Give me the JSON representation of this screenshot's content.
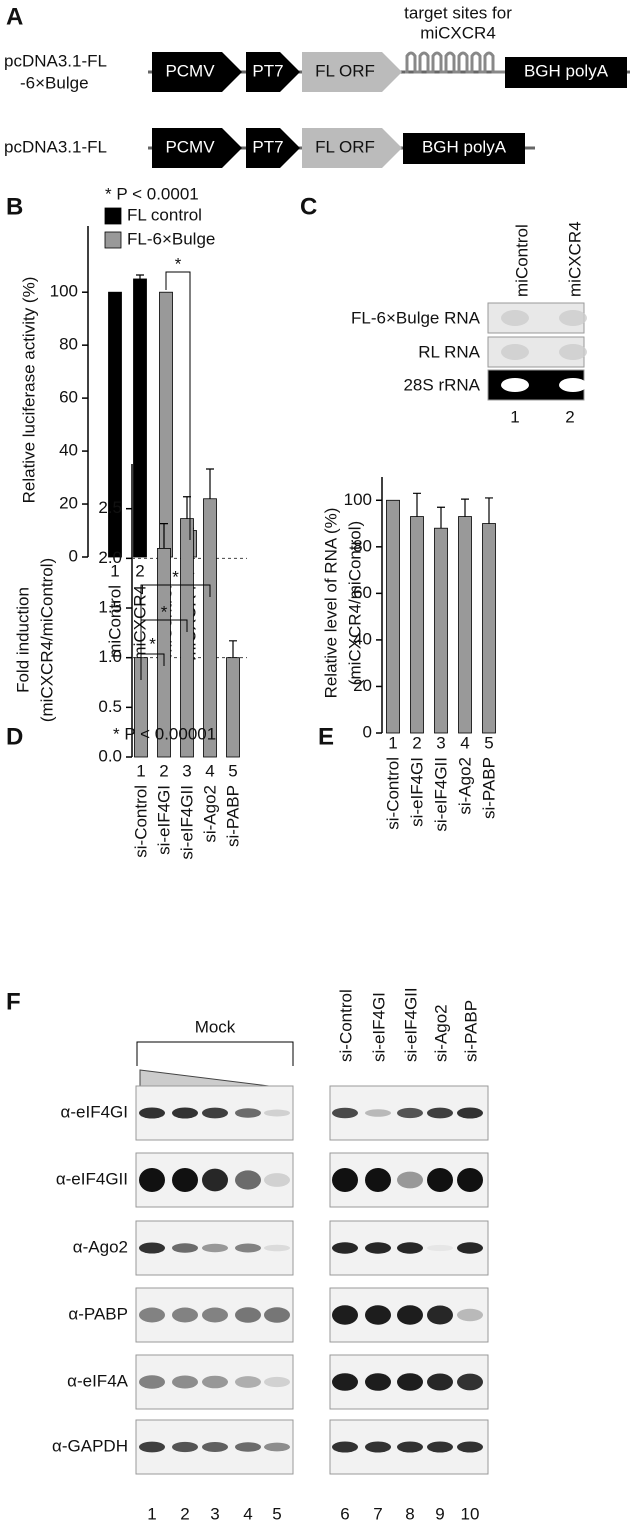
{
  "panel_labels": [
    "A",
    "B",
    "C",
    "D",
    "E",
    "F"
  ],
  "constructs": [
    {
      "name_lines": [
        "pcDNA3.1-FL",
        "-6×Bulge"
      ],
      "elements": [
        "PCMV",
        "PT7",
        "FL ORF",
        "BGH polyA"
      ],
      "target_label": [
        "target sites for",
        "miCXCR4"
      ]
    },
    {
      "name_lines": [
        "pcDNA3.1-FL"
      ],
      "elements": [
        "PCMV",
        "PT7",
        "FL ORF",
        "BGH polyA"
      ]
    }
  ],
  "northern": {
    "lanes": [
      "miControl",
      "miCXCR4"
    ],
    "rows": [
      "FL-6×Bulge RNA",
      "RL RNA",
      "28S rRNA"
    ],
    "lane_numbers": [
      "1",
      "2"
    ]
  },
  "western": {
    "group_label": "Mock",
    "lanes": [
      "si-Control",
      "si-eIF4GI",
      "si-eIF4GII",
      "si-Ago2",
      "si-PABP"
    ],
    "rows": [
      "α-eIF4GI",
      "α-eIF4GII",
      "α-Ago2",
      "α-PABP",
      "α-eIF4A",
      "α-GAPDH"
    ],
    "lane_numbers": [
      "1",
      "2",
      "3",
      "4",
      "5",
      "6",
      "7",
      "8",
      "9",
      "10"
    ]
  },
  "chart_data": [
    {
      "type": "bar",
      "ylabel": [
        "Relative luciferase activity (%)"
      ],
      "annotation": "* P < 0.0001",
      "lane_numbers": [
        "1",
        "2",
        "3",
        "4"
      ],
      "categories": [
        "miControl",
        "miCXCR4",
        "miControl",
        "miCXCR4"
      ],
      "series": [
        {
          "name": "FL control",
          "color": "#000000",
          "values": [
            100,
            105,
            null,
            null
          ],
          "errors": [
            null,
            1.5,
            null,
            null
          ]
        },
        {
          "name": "FL-6×Bulge",
          "color": "#999999",
          "values": [
            null,
            null,
            100,
            10
          ],
          "errors": [
            null,
            null,
            null,
            0.8
          ]
        }
      ],
      "ylim": [
        0,
        125
      ],
      "yticks": [
        0,
        20,
        40,
        60,
        80,
        100
      ],
      "significance": [
        "*"
      ]
    },
    {
      "type": "bar",
      "ylabel": [
        "Fold induction",
        "(miCXCR4/miControl)"
      ],
      "annotation": "* P < 0.00001",
      "lane_numbers": [
        "1",
        "2",
        "3",
        "4",
        "5"
      ],
      "categories": [
        "si-Control",
        "si-eIF4GI",
        "si-eIF4GII",
        "si-Ago2",
        "si-PABP"
      ],
      "series": [
        {
          "name": null,
          "color": "#999999",
          "values": [
            1,
            2.1,
            2.4,
            2.6,
            1
          ],
          "errors": [
            null,
            0.25,
            0.22,
            0.3,
            0.17
          ]
        }
      ],
      "ylim": [
        0,
        2.95
      ],
      "yticks": [
        {
          "value": 0,
          "label": "0.0"
        },
        0.5,
        {
          "value": 1,
          "label": "1.0"
        },
        1.5,
        {
          "value": 2,
          "label": "2.0"
        },
        2.5
      ],
      "reference_lines": [
        1,
        2
      ],
      "significance": [
        "*",
        "*",
        "*"
      ]
    },
    {
      "type": "bar",
      "ylabel": [
        "Relative level of RNA (%)",
        "(miCXCR4/miControl)"
      ],
      "lane_numbers": [
        "1",
        "2",
        "3",
        "4",
        "5"
      ],
      "categories": [
        "si-Control",
        "si-eIF4GI",
        "si-eIF4GII",
        "si-Ago2",
        "si-PABP"
      ],
      "series": [
        {
          "name": null,
          "color": "#999999",
          "values": [
            100,
            93,
            88,
            93,
            90
          ],
          "errors": [
            null,
            10,
            9,
            7.5,
            11
          ]
        }
      ],
      "ylim": [
        0,
        110
      ],
      "yticks": [
        0,
        20,
        40,
        60,
        80,
        100
      ]
    }
  ]
}
